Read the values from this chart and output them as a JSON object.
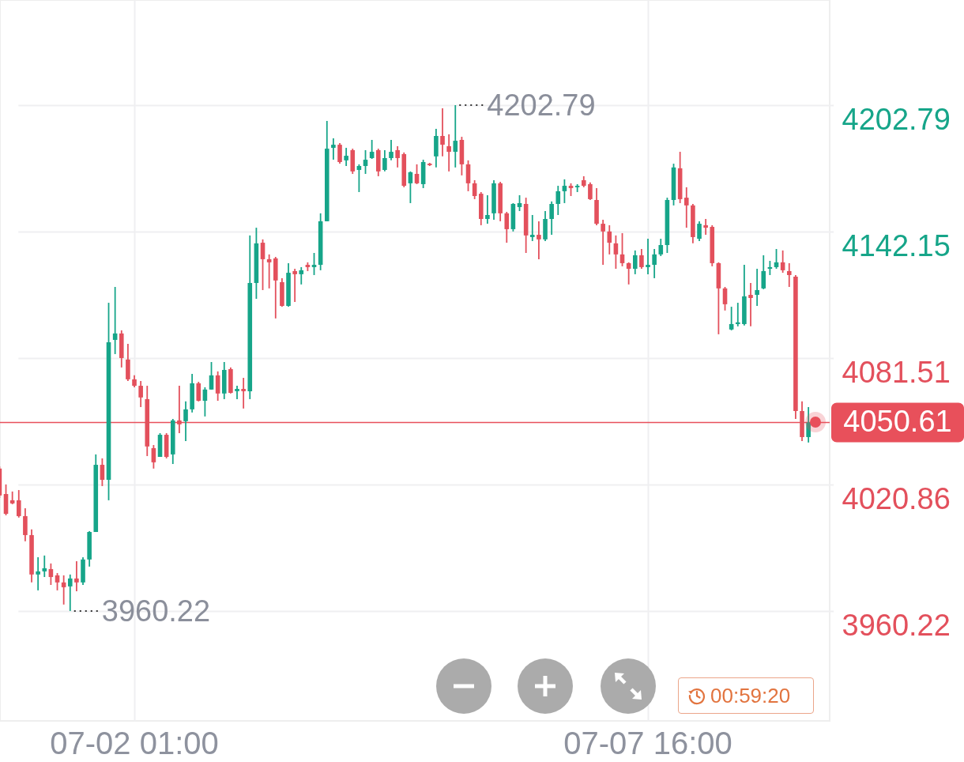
{
  "chart_data": {
    "type": "candlestick",
    "categories": [
      null,
      null,
      null,
      null,
      null,
      null,
      null,
      null,
      null,
      null,
      null,
      null,
      null,
      null,
      null,
      null,
      null,
      null,
      null,
      null,
      null,
      "07-02 01:00",
      null,
      null,
      null,
      null,
      null,
      null,
      null,
      null,
      null,
      null,
      null,
      null,
      null,
      null,
      null,
      null,
      null,
      null,
      null,
      null,
      null,
      null,
      null,
      null,
      null,
      null,
      null,
      null,
      null,
      null,
      null,
      null,
      null,
      null,
      null,
      null,
      null,
      null,
      null,
      null,
      null,
      null,
      null,
      null,
      null,
      null,
      null,
      null,
      null,
      null,
      null,
      null,
      null,
      null,
      null,
      null,
      null,
      null,
      null,
      null,
      null,
      null,
      null,
      null,
      null,
      null,
      null,
      null,
      null,
      null,
      null,
      null,
      null,
      null,
      null,
      null,
      null,
      null,
      null,
      "07-07 16:00",
      null,
      null,
      null,
      null,
      null,
      null,
      null,
      null,
      null,
      null,
      null,
      null,
      null,
      null,
      null,
      null,
      null,
      null,
      null,
      null,
      null,
      null,
      null,
      null,
      null
    ],
    "ohlc": [
      [
        4028.5,
        4029.6,
        4014.4,
        4015.6
      ],
      [
        4016.3,
        4020.9,
        4006.1,
        4006.8
      ],
      [
        4013.3,
        4017.5,
        4011.4,
        4011.8
      ],
      [
        4013.3,
        4018.2,
        4005.0,
        4005.7
      ],
      [
        4005.7,
        4009.5,
        3993.6,
        3996.6
      ],
      [
        3996.6,
        3999.3,
        3973.9,
        3977.7
      ],
      [
        3977.7,
        3986.0,
        3970.1,
        3979.2
      ],
      [
        3979.2,
        3986.8,
        3976.5,
        3980.7
      ],
      [
        3980.3,
        3983.0,
        3972.7,
        3976.5
      ],
      [
        3977.3,
        3978.4,
        3970.1,
        3973.9
      ],
      [
        3973.9,
        3977.3,
        3963.3,
        3971.6
      ],
      [
        3972.0,
        3977.7,
        3960.22,
        3975.8
      ],
      [
        3975.8,
        3984.1,
        3969.7,
        3973.9
      ],
      [
        3973.9,
        3986.0,
        3972.7,
        3984.9
      ],
      [
        3984.9,
        3998.5,
        3981.5,
        3998.1
      ],
      [
        3998.1,
        4035.3,
        3998.1,
        4030.3
      ],
      [
        4030.3,
        4033.4,
        4020.1,
        4023.1
      ],
      [
        4023.1,
        4108.0,
        4013.3,
        4089.1
      ],
      [
        4090.2,
        4115.6,
        4083.4,
        4093.3
      ],
      [
        4093.3,
        4094.8,
        4077.0,
        4081.5
      ],
      [
        4080.8,
        4088.3,
        4070.5,
        4071.3
      ],
      [
        4071.3,
        4073.2,
        4067.5,
        4068.2
      ],
      [
        4068.2,
        4070.5,
        4058.0,
        4062.6
      ],
      [
        4061.8,
        4068.2,
        4034.5,
        4039.1
      ],
      [
        4038.3,
        4039.8,
        4028.5,
        4031.5
      ],
      [
        4034.1,
        4045.5,
        4034.1,
        4044.7
      ],
      [
        4044.7,
        4045.5,
        4033.4,
        4034.1
      ],
      [
        4035.3,
        4052.3,
        4030.7,
        4051.6
      ],
      [
        4051.6,
        4068.2,
        4045.5,
        4049.7
      ],
      [
        4051.2,
        4060.7,
        4041.7,
        4056.9
      ],
      [
        4056.9,
        4073.9,
        4055.4,
        4069.4
      ],
      [
        4069.4,
        4070.1,
        4060.7,
        4061.0
      ],
      [
        4061.0,
        4067.5,
        4053.5,
        4066.4
      ],
      [
        4066.4,
        4079.6,
        4066.4,
        4073.2
      ],
      [
        4073.2,
        4075.1,
        4061.0,
        4064.5
      ],
      [
        4064.5,
        4079.6,
        4061.8,
        4075.8
      ],
      [
        4076.2,
        4077.0,
        4064.5,
        4064.8
      ],
      [
        4065.6,
        4068.2,
        4061.8,
        4066.7
      ],
      [
        4066.7,
        4072.0,
        4057.3,
        4065.6
      ],
      [
        4065.6,
        4140.3,
        4061.8,
        4117.5
      ],
      [
        4117.5,
        4144.0,
        4109.9,
        4136.5
      ],
      [
        4136.8,
        4138.4,
        4114.1,
        4128.9
      ],
      [
        4128.9,
        4131.2,
        4114.9,
        4127.4
      ],
      [
        4129.3,
        4130.0,
        4100.5,
        4118.7
      ],
      [
        4117.9,
        4119.8,
        4106.1,
        4106.5
      ],
      [
        4106.5,
        4127.0,
        4106.1,
        4122.4
      ],
      [
        4123.2,
        4124.3,
        4108.4,
        4121.7
      ],
      [
        4121.7,
        4125.1,
        4116.8,
        4123.6
      ],
      [
        4126.2,
        4127.4,
        4123.2,
        4125.1
      ],
      [
        4125.1,
        4131.9,
        4121.3,
        4126.2
      ],
      [
        4126.2,
        4150.9,
        4123.6,
        4147.1
      ],
      [
        4147.1,
        4195.2,
        4147.1,
        4181.9
      ],
      [
        4182.3,
        4186.9,
        4176.6,
        4183.8
      ],
      [
        4183.8,
        4184.6,
        4174.7,
        4175.5
      ],
      [
        4176.3,
        4182.3,
        4173.6,
        4178.5
      ],
      [
        4181.2,
        4181.9,
        4169.8,
        4171.0
      ],
      [
        4171.7,
        4174.4,
        4161.1,
        4173.6
      ],
      [
        4173.6,
        4181.2,
        4169.8,
        4176.6
      ],
      [
        4177.4,
        4186.1,
        4177.0,
        4180.4
      ],
      [
        4181.2,
        4181.9,
        4168.7,
        4171.0
      ],
      [
        4171.7,
        4181.2,
        4171.0,
        4177.4
      ],
      [
        4177.4,
        4186.1,
        4176.3,
        4180.4
      ],
      [
        4181.2,
        4183.1,
        4172.9,
        4177.4
      ],
      [
        4179.3,
        4180.1,
        4163.4,
        4164.1
      ],
      [
        4165.3,
        4171.0,
        4155.8,
        4170.6
      ],
      [
        4169.8,
        4174.4,
        4164.9,
        4165.3
      ],
      [
        4164.9,
        4176.6,
        4163.0,
        4175.5
      ],
      [
        4174.7,
        4175.1,
        4173.6,
        4174.0
      ],
      [
        4178.2,
        4191.4,
        4172.9,
        4188.0
      ],
      [
        4188.0,
        4201.3,
        4178.2,
        4183.8
      ],
      [
        4183.1,
        4188.8,
        4171.0,
        4180.4
      ],
      [
        4180.4,
        4202.79,
        4172.9,
        4185.7
      ],
      [
        4186.1,
        4187.6,
        4169.1,
        4174.4
      ],
      [
        4174.4,
        4176.3,
        4161.5,
        4165.3
      ],
      [
        4165.3,
        4166.8,
        4157.7,
        4159.2
      ],
      [
        4160.3,
        4161.1,
        4145.2,
        4148.2
      ],
      [
        4148.2,
        4159.6,
        4145.9,
        4150.1
      ],
      [
        4150.9,
        4166.8,
        4147.8,
        4165.3
      ],
      [
        4165.3,
        4166.0,
        4147.1,
        4150.9
      ],
      [
        4150.9,
        4151.6,
        4136.8,
        4143.3
      ],
      [
        4143.3,
        4155.8,
        4142.2,
        4155.4
      ],
      [
        4153.9,
        4159.6,
        4152.0,
        4155.8
      ],
      [
        4155.4,
        4158.4,
        4131.9,
        4140.3
      ],
      [
        4139.5,
        4150.1,
        4137.6,
        4140.6
      ],
      [
        4140.6,
        4147.1,
        4128.9,
        4138.4
      ],
      [
        4138.4,
        4152.0,
        4137.6,
        4148.2
      ],
      [
        4148.2,
        4156.6,
        4140.6,
        4155.4
      ],
      [
        4155.4,
        4164.1,
        4150.1,
        4161.5
      ],
      [
        4161.5,
        4167.2,
        4155.8,
        4164.1
      ],
      [
        4164.1,
        4165.3,
        4159.2,
        4163.0
      ],
      [
        4163.4,
        4164.9,
        4161.1,
        4164.1
      ],
      [
        4166.8,
        4168.7,
        4163.4,
        4164.1
      ],
      [
        4164.9,
        4165.7,
        4157.3,
        4157.7
      ],
      [
        4157.3,
        4163.0,
        4145.2,
        4145.9
      ],
      [
        4145.9,
        4147.8,
        4126.2,
        4142.2
      ],
      [
        4142.2,
        4145.2,
        4131.2,
        4136.8
      ],
      [
        4136.5,
        4140.3,
        4124.3,
        4131.2
      ],
      [
        4131.2,
        4141.4,
        4125.5,
        4127.0
      ],
      [
        4127.0,
        4127.4,
        4116.8,
        4124.3
      ],
      [
        4124.3,
        4133.1,
        4121.7,
        4130.8
      ],
      [
        4130.8,
        4133.8,
        4124.3,
        4125.1
      ],
      [
        4125.1,
        4138.7,
        4121.7,
        4126.2
      ],
      [
        4126.2,
        4133.8,
        4119.8,
        4131.2
      ],
      [
        4131.2,
        4138.7,
        4130.4,
        4135.7
      ],
      [
        4135.7,
        4158.4,
        4131.9,
        4157.3
      ],
      [
        4157.3,
        4174.7,
        4154.7,
        4172.9
      ],
      [
        4172.5,
        4180.4,
        4155.8,
        4157.7
      ],
      [
        4158.4,
        4163.4,
        4144.0,
        4154.7
      ],
      [
        4154.7,
        4155.4,
        4136.5,
        4139.5
      ],
      [
        4138.7,
        4147.1,
        4137.6,
        4145.9
      ],
      [
        4145.2,
        4148.2,
        4140.6,
        4144.0
      ],
      [
        4144.4,
        4145.2,
        4125.5,
        4127.0
      ],
      [
        4127.0,
        4127.4,
        4092.9,
        4114.9
      ],
      [
        4114.9,
        4115.6,
        4104.3,
        4107.3
      ],
      [
        4095.2,
        4106.1,
        4094.8,
        4097.8
      ],
      [
        4097.8,
        4108.0,
        4096.7,
        4098.6
      ],
      [
        4097.8,
        4126.2,
        4097.1,
        4111.1
      ],
      [
        4111.8,
        4117.5,
        4096.7,
        4110.3
      ],
      [
        4111.8,
        4124.3,
        4106.5,
        4114.1
      ],
      [
        4114.9,
        4130.8,
        4114.5,
        4123.2
      ],
      [
        4124.3,
        4128.1,
        4121.3,
        4125.1
      ],
      [
        4125.1,
        4133.8,
        4124.3,
        4127.4
      ],
      [
        4127.4,
        4133.1,
        4122.4,
        4123.6
      ],
      [
        4123.2,
        4127.0,
        4115.6,
        4121.3
      ],
      [
        4120.5,
        4121.3,
        4052.3,
        4056.1
      ],
      [
        4056.1,
        4060.7,
        4041.7,
        4043.6
      ],
      [
        4043.6,
        4058.0,
        4041.0,
        4050.61
      ]
    ],
    "colors": [
      "#e3505c",
      "#e3505c",
      "#e3505c",
      "#e3505c",
      "#e3505c",
      "#e3505c",
      "#16a589",
      "#16a589",
      "#e3505c",
      "#e3505c",
      "#e3505c",
      "#16a589",
      "#e3505c",
      "#16a589",
      "#16a589",
      "#16a589",
      "#e3505c",
      "#16a589",
      "#16a589",
      "#e3505c",
      "#e3505c",
      "#e3505c",
      "#e3505c",
      "#e3505c",
      "#e3505c",
      "#16a589",
      "#e3505c",
      "#16a589",
      "#e3505c",
      "#16a589",
      "#16a589",
      "#e3505c",
      "#16a589",
      "#16a589",
      "#e3505c",
      "#16a589",
      "#e3505c",
      "#16a589",
      "#e3505c",
      "#16a589",
      "#16a589",
      "#e3505c",
      "#e3505c",
      "#e3505c",
      "#e3505c",
      "#16a589",
      "#e3505c",
      "#16a589",
      "#e3505c",
      "#16a589",
      "#16a589",
      "#16a589",
      "#16a589",
      "#e3505c",
      "#16a589",
      "#e3505c",
      "#16a589",
      "#16a589",
      "#16a589",
      "#e3505c",
      "#16a589",
      "#16a589",
      "#e3505c",
      "#e3505c",
      "#16a589",
      "#e3505c",
      "#16a589",
      "#e3505c",
      "#16a589",
      "#e3505c",
      "#e3505c",
      "#16a589",
      "#e3505c",
      "#e3505c",
      "#e3505c",
      "#e3505c",
      "#16a589",
      "#16a589",
      "#e3505c",
      "#e3505c",
      "#16a589",
      "#16a589",
      "#e3505c",
      "#16a589",
      "#e3505c",
      "#16a589",
      "#16a589",
      "#16a589",
      "#16a589",
      "#e3505c",
      "#16a589",
      "#e3505c",
      "#e3505c",
      "#e3505c",
      "#e3505c",
      "#e3505c",
      "#e3505c",
      "#e3505c",
      "#e3505c",
      "#16a589",
      "#e3505c",
      "#16a589",
      "#16a589",
      "#16a589",
      "#16a589",
      "#16a589",
      "#e3505c",
      "#e3505c",
      "#e3505c",
      "#16a589",
      "#e3505c",
      "#e3505c",
      "#e3505c",
      "#e3505c",
      "#16a589",
      "#16a589",
      "#16a589",
      "#e3505c",
      "#16a589",
      "#16a589",
      "#16a589",
      "#16a589",
      "#e3505c",
      "#e3505c",
      "#e3505c",
      "#e3505c",
      "#16a589"
    ],
    "ylim": [
      3907.5,
      4253.2
    ],
    "yticks": [
      4202.79,
      4142.15,
      4081.51,
      4020.86,
      3960.22
    ],
    "grid": true,
    "ref_lines": [
      {
        "axis": "y",
        "value": 4050.61,
        "label": "4050.61",
        "color": "#e8505b"
      }
    ],
    "annotations": [
      "4202.79",
      "3960.22",
      "00:59:20"
    ]
  }
}
